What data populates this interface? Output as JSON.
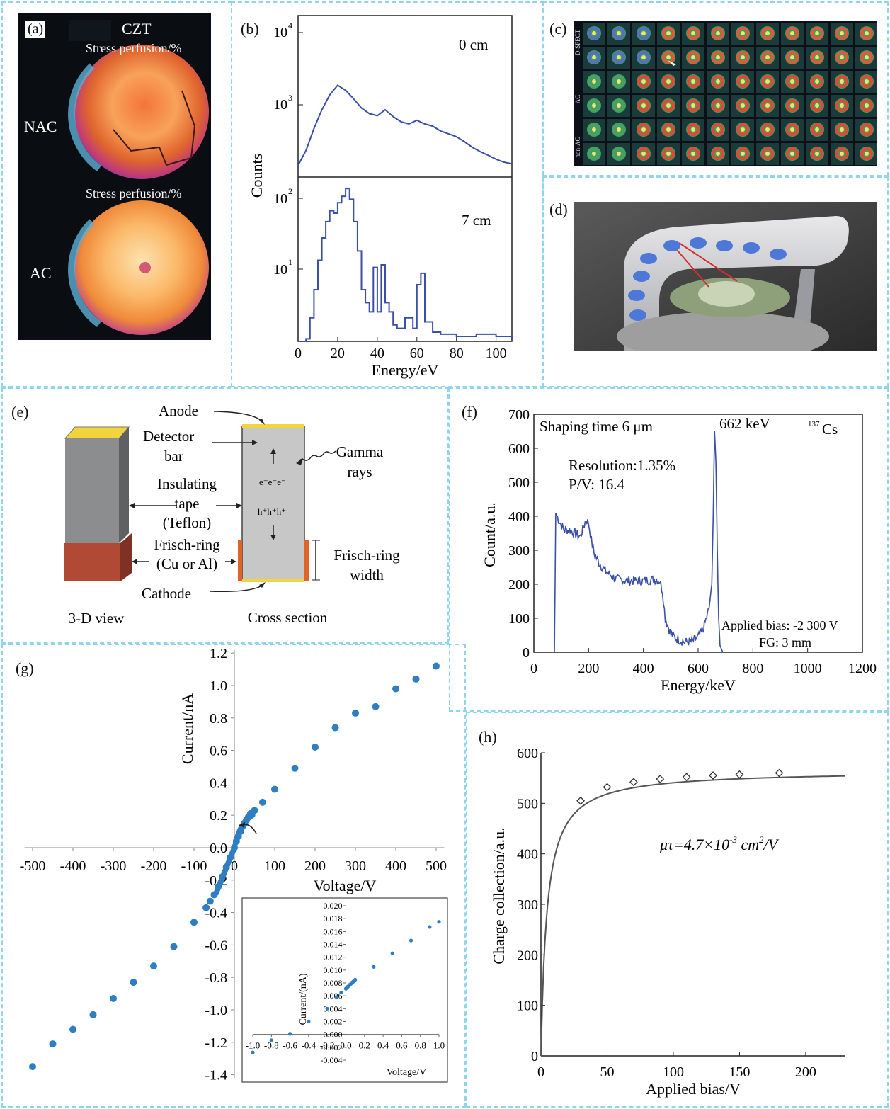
{
  "panels": {
    "a": {
      "label": "(a)",
      "modality": "CZT",
      "top_title": "Stress perfusion/%",
      "bottom_title": "Stress perfusion/%",
      "top_side": "NAC",
      "bottom_side": "AC"
    },
    "b": {
      "label": "(b)",
      "ylabel": "Counts",
      "xlabel": "Energy/eV",
      "top_annotation": "0 cm",
      "bottom_annotation": "7 cm",
      "top_ticks": [
        "10",
        "10"
      ],
      "top_exps": [
        "4",
        "3"
      ],
      "bottom_ticks": [
        "10",
        "10"
      ],
      "bottom_exps": [
        "2",
        "1"
      ],
      "xticks": [
        "0",
        "20",
        "40",
        "60",
        "80",
        "100"
      ]
    },
    "c": {
      "label": "(c)",
      "row_labels": [
        "D-SPECT",
        "AC",
        "non-AC"
      ]
    },
    "d": {
      "label": "(d)"
    },
    "e": {
      "label": "(e)",
      "anode": "Anode",
      "detector_bar_1": "Detector",
      "detector_bar_2": "bar",
      "insulating_1": "Insulating",
      "insulating_2": "tape",
      "insulating_3": "(Teflon)",
      "frisch_ring_1": "Frisch-ring",
      "frisch_ring_2": "(Cu or Al)",
      "cathode": "Cathode",
      "gamma_1": "Gamma",
      "gamma_2": "rays",
      "frisch_width_1": "Frisch-ring",
      "frisch_width_2": "width",
      "view_3d": "3-D view",
      "cross_section": "Cross section"
    },
    "f": {
      "label": "(f)",
      "ylabel": "Count/a.u.",
      "xlabel": "Energy/keV",
      "shaping": "Shaping time 6 μm",
      "peak": "662 keV",
      "isotope_mass": "137",
      "isotope": "Cs",
      "resolution": "Resolution:1.35%",
      "pv": "P/V: 16.4",
      "bias": "Applied bias: -2 300 V",
      "fg": "FG: 3 mm"
    },
    "g": {
      "label": "(g)",
      "ylabel": "Current/nA",
      "xlabel": "Voltage/V",
      "inset_ylabel": "Current/(nA)",
      "inset_xlabel": "Voltage/V"
    },
    "h": {
      "label": "(h)",
      "ylabel": "Charge collection/a.u.",
      "xlabel": "Applied bias/V",
      "annotation_prefix": "μτ=4.7×10",
      "annotation_exp": "-3",
      "annotation_unit": " cm",
      "annotation_unit_exp": "2",
      "annotation_suffix": "/V"
    }
  },
  "colors": {
    "frame": "#8fd6ec",
    "spectrum": "#3a4fa8",
    "points": "#2f7ec1",
    "fit": "#555555"
  },
  "chart_data": [
    {
      "id": "b-top",
      "type": "line",
      "xlabel": "Energy/eV",
      "ylabel": "Counts",
      "annotation": "0 cm",
      "yscale": "log",
      "ylim": [
        160,
        13000
      ],
      "xlim": [
        0,
        108
      ],
      "x": [
        0,
        4,
        8,
        12,
        16,
        20,
        24,
        28,
        32,
        36,
        40,
        44,
        48,
        52,
        56,
        60,
        64,
        68,
        72,
        76,
        80,
        84,
        88,
        92,
        96,
        100,
        104,
        108
      ],
      "y": [
        220,
        330,
        600,
        1000,
        1500,
        1950,
        1700,
        1350,
        1050,
        900,
        850,
        1000,
        830,
        720,
        680,
        750,
        680,
        640,
        560,
        520,
        480,
        420,
        360,
        320,
        290,
        260,
        240,
        230
      ]
    },
    {
      "id": "b-bottom",
      "type": "line",
      "xlabel": "Energy/eV",
      "ylabel": "Counts",
      "annotation": "7 cm",
      "yscale": "log",
      "ylim": [
        1.2,
        200
      ],
      "xlim": [
        0,
        108
      ],
      "x": [
        0,
        4,
        6,
        8,
        10,
        12,
        14,
        16,
        18,
        20,
        22,
        24,
        26,
        28,
        30,
        32,
        34,
        36,
        38,
        40,
        42,
        44,
        46,
        48,
        50,
        54,
        58,
        60,
        62,
        64,
        68,
        72,
        80,
        90,
        100,
        108
      ],
      "y": [
        1.2,
        1.3,
        2.5,
        6,
        15,
        30,
        50,
        70,
        65,
        90,
        110,
        140,
        100,
        50,
        20,
        6,
        4,
        3,
        12,
        3,
        13,
        4,
        3,
        2,
        1.8,
        2.5,
        1.8,
        7,
        10,
        2.2,
        1.6,
        1.5,
        1.4,
        1.5,
        1.4,
        1.3
      ]
    },
    {
      "id": "f",
      "type": "line",
      "xlabel": "Energy/keV",
      "ylabel": "Count/a.u.",
      "xlim": [
        0,
        1200
      ],
      "ylim": [
        0,
        700
      ],
      "x": [
        75,
        80,
        90,
        110,
        130,
        150,
        170,
        190,
        200,
        210,
        220,
        240,
        260,
        300,
        350,
        400,
        440,
        460,
        470,
        480,
        500,
        520,
        550,
        580,
        600,
        620,
        640,
        650,
        655,
        660,
        665,
        670,
        675,
        680,
        690
      ],
      "y": [
        0,
        410,
        390,
        360,
        360,
        350,
        340,
        390,
        380,
        330,
        290,
        260,
        240,
        215,
        210,
        210,
        215,
        210,
        180,
        100,
        55,
        40,
        30,
        32,
        45,
        70,
        130,
        200,
        400,
        650,
        560,
        300,
        100,
        20,
        0
      ]
    },
    {
      "id": "g",
      "type": "scatter",
      "xlabel": "Voltage/V",
      "ylabel": "Current/nA",
      "xlim": [
        -520,
        520
      ],
      "ylim": [
        -1.4,
        1.2
      ],
      "x": [
        -500,
        -450,
        -400,
        -350,
        -300,
        -250,
        -200,
        -150,
        -100,
        -70,
        -60,
        -50,
        -40,
        -30,
        -20,
        -10,
        0,
        5,
        10,
        15,
        20,
        25,
        30,
        35,
        40,
        50,
        70,
        100,
        150,
        200,
        250,
        300,
        350,
        400,
        450,
        500
      ],
      "y": [
        -1.35,
        -1.21,
        -1.12,
        -1.03,
        -0.93,
        -0.83,
        -0.73,
        -0.61,
        -0.46,
        -0.37,
        -0.33,
        -0.29,
        -0.24,
        -0.18,
        -0.12,
        -0.06,
        0.0,
        0.04,
        0.07,
        0.1,
        0.13,
        0.15,
        0.17,
        0.19,
        0.21,
        0.23,
        0.28,
        0.36,
        0.49,
        0.62,
        0.74,
        0.83,
        0.87,
        0.98,
        1.04,
        1.12
      ]
    },
    {
      "id": "g-inset",
      "type": "scatter",
      "xlabel": "Voltage/V",
      "ylabel": "Current/(nA)",
      "xlim": [
        -1.1,
        1.0
      ],
      "ylim": [
        -0.004,
        0.02
      ],
      "x": [
        -1.0,
        -0.8,
        -0.6,
        -0.4,
        -0.2,
        -0.1,
        -0.05,
        0.0,
        0.02,
        0.04,
        0.06,
        0.08,
        0.1,
        0.3,
        0.5,
        0.7,
        0.9,
        1.0
      ],
      "y": [
        -0.0028,
        -0.0009,
        0.0001,
        0.002,
        0.004,
        0.0058,
        0.0065,
        0.0071,
        0.0074,
        0.0077,
        0.008,
        0.0082,
        0.0085,
        0.0105,
        0.0126,
        0.0146,
        0.0167,
        0.0175
      ]
    },
    {
      "id": "h",
      "type": "scatter",
      "xlabel": "Applied bias/V",
      "ylabel": "Charge collection/a.u.",
      "xlim": [
        0,
        230
      ],
      "ylim": [
        0,
        600
      ],
      "x": [
        30,
        50,
        70,
        90,
        110,
        130,
        150,
        180
      ],
      "y": [
        505,
        532,
        542,
        548,
        552,
        555,
        557,
        560
      ],
      "fit_label": "μτ=4.7×10-3 cm2/V"
    }
  ]
}
